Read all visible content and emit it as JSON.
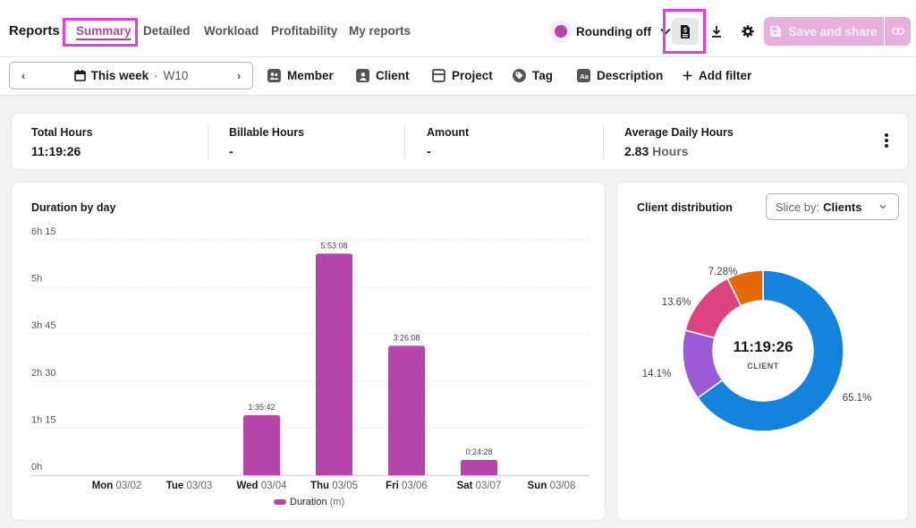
{
  "header": {
    "title": "Reports",
    "tabs": [
      {
        "label": "Summary",
        "active": true
      },
      {
        "label": "Detailed",
        "active": false
      },
      {
        "label": "Workload",
        "active": false
      },
      {
        "label": "Profitability",
        "active": false
      },
      {
        "label": "My reports",
        "active": false
      }
    ],
    "rounding_label": "Rounding off",
    "save_label": "Save and share",
    "icons": {
      "revenue": "revenue-report-icon",
      "download": "download-icon",
      "settings": "gear-icon",
      "save": "save-icon",
      "link": "link-icon"
    }
  },
  "filters": {
    "date_label": "This week",
    "date_separator": "·",
    "date_week": "W10",
    "prev": "‹",
    "next": "›",
    "items": [
      {
        "label": "Member",
        "icon": "member-icon"
      },
      {
        "label": "Client",
        "icon": "client-icon"
      },
      {
        "label": "Project",
        "icon": "project-icon"
      },
      {
        "label": "Tag",
        "icon": "tag-icon"
      },
      {
        "label": "Description",
        "icon": "description-icon"
      }
    ],
    "add_filter": "Add filter"
  },
  "summary": {
    "stats": [
      {
        "label": "Total Hours",
        "value": "11:19:26",
        "unit": ""
      },
      {
        "label": "Billable Hours",
        "value": "-",
        "unit": ""
      },
      {
        "label": "Amount",
        "value": "-",
        "unit": ""
      },
      {
        "label": "Average Daily Hours",
        "value": "2.83",
        "unit": "Hours"
      }
    ]
  },
  "colors": {
    "accent": "#b545a9",
    "bar": "#b545a9",
    "donut": [
      "#1483dd",
      "#9b5ad6",
      "#dd447f",
      "#e46a06"
    ]
  },
  "chart_data": [
    {
      "type": "bar",
      "title": "Duration by day",
      "categories": [
        {
          "day": "Mon",
          "date": "03/02"
        },
        {
          "day": "Tue",
          "date": "03/03"
        },
        {
          "day": "Wed",
          "date": "03/04"
        },
        {
          "day": "Thu",
          "date": "03/05"
        },
        {
          "day": "Fri",
          "date": "03/06"
        },
        {
          "day": "Sat",
          "date": "03/07"
        },
        {
          "day": "Sun",
          "date": "03/08"
        }
      ],
      "values_minutes": [
        0,
        0,
        95.7,
        353.13,
        206.13,
        24.47,
        0
      ],
      "data_labels": [
        "",
        "",
        "1:35:42",
        "5:53:08",
        "3:26:08",
        "0:24:28",
        ""
      ],
      "yticks": [
        "0h",
        "1h 15",
        "2h 30",
        "3h 45",
        "5h",
        "6h 15"
      ],
      "ylim_minutes": [
        0,
        375
      ],
      "legend": {
        "name": "Duration",
        "unit": "(m)",
        "placement": "bottom"
      },
      "grid": true
    },
    {
      "type": "pie",
      "title": "Client distribution",
      "slice_by_label": "Slice by:",
      "slice_by_value": "Clients",
      "center_value": "11:19:26",
      "center_label": "CLIENT",
      "slices": [
        {
          "label": "65.1%",
          "value": 65.1
        },
        {
          "label": "14.1%",
          "value": 14.1
        },
        {
          "label": "13.6%",
          "value": 13.6
        },
        {
          "label": "7.28%",
          "value": 7.28
        }
      ]
    }
  ]
}
